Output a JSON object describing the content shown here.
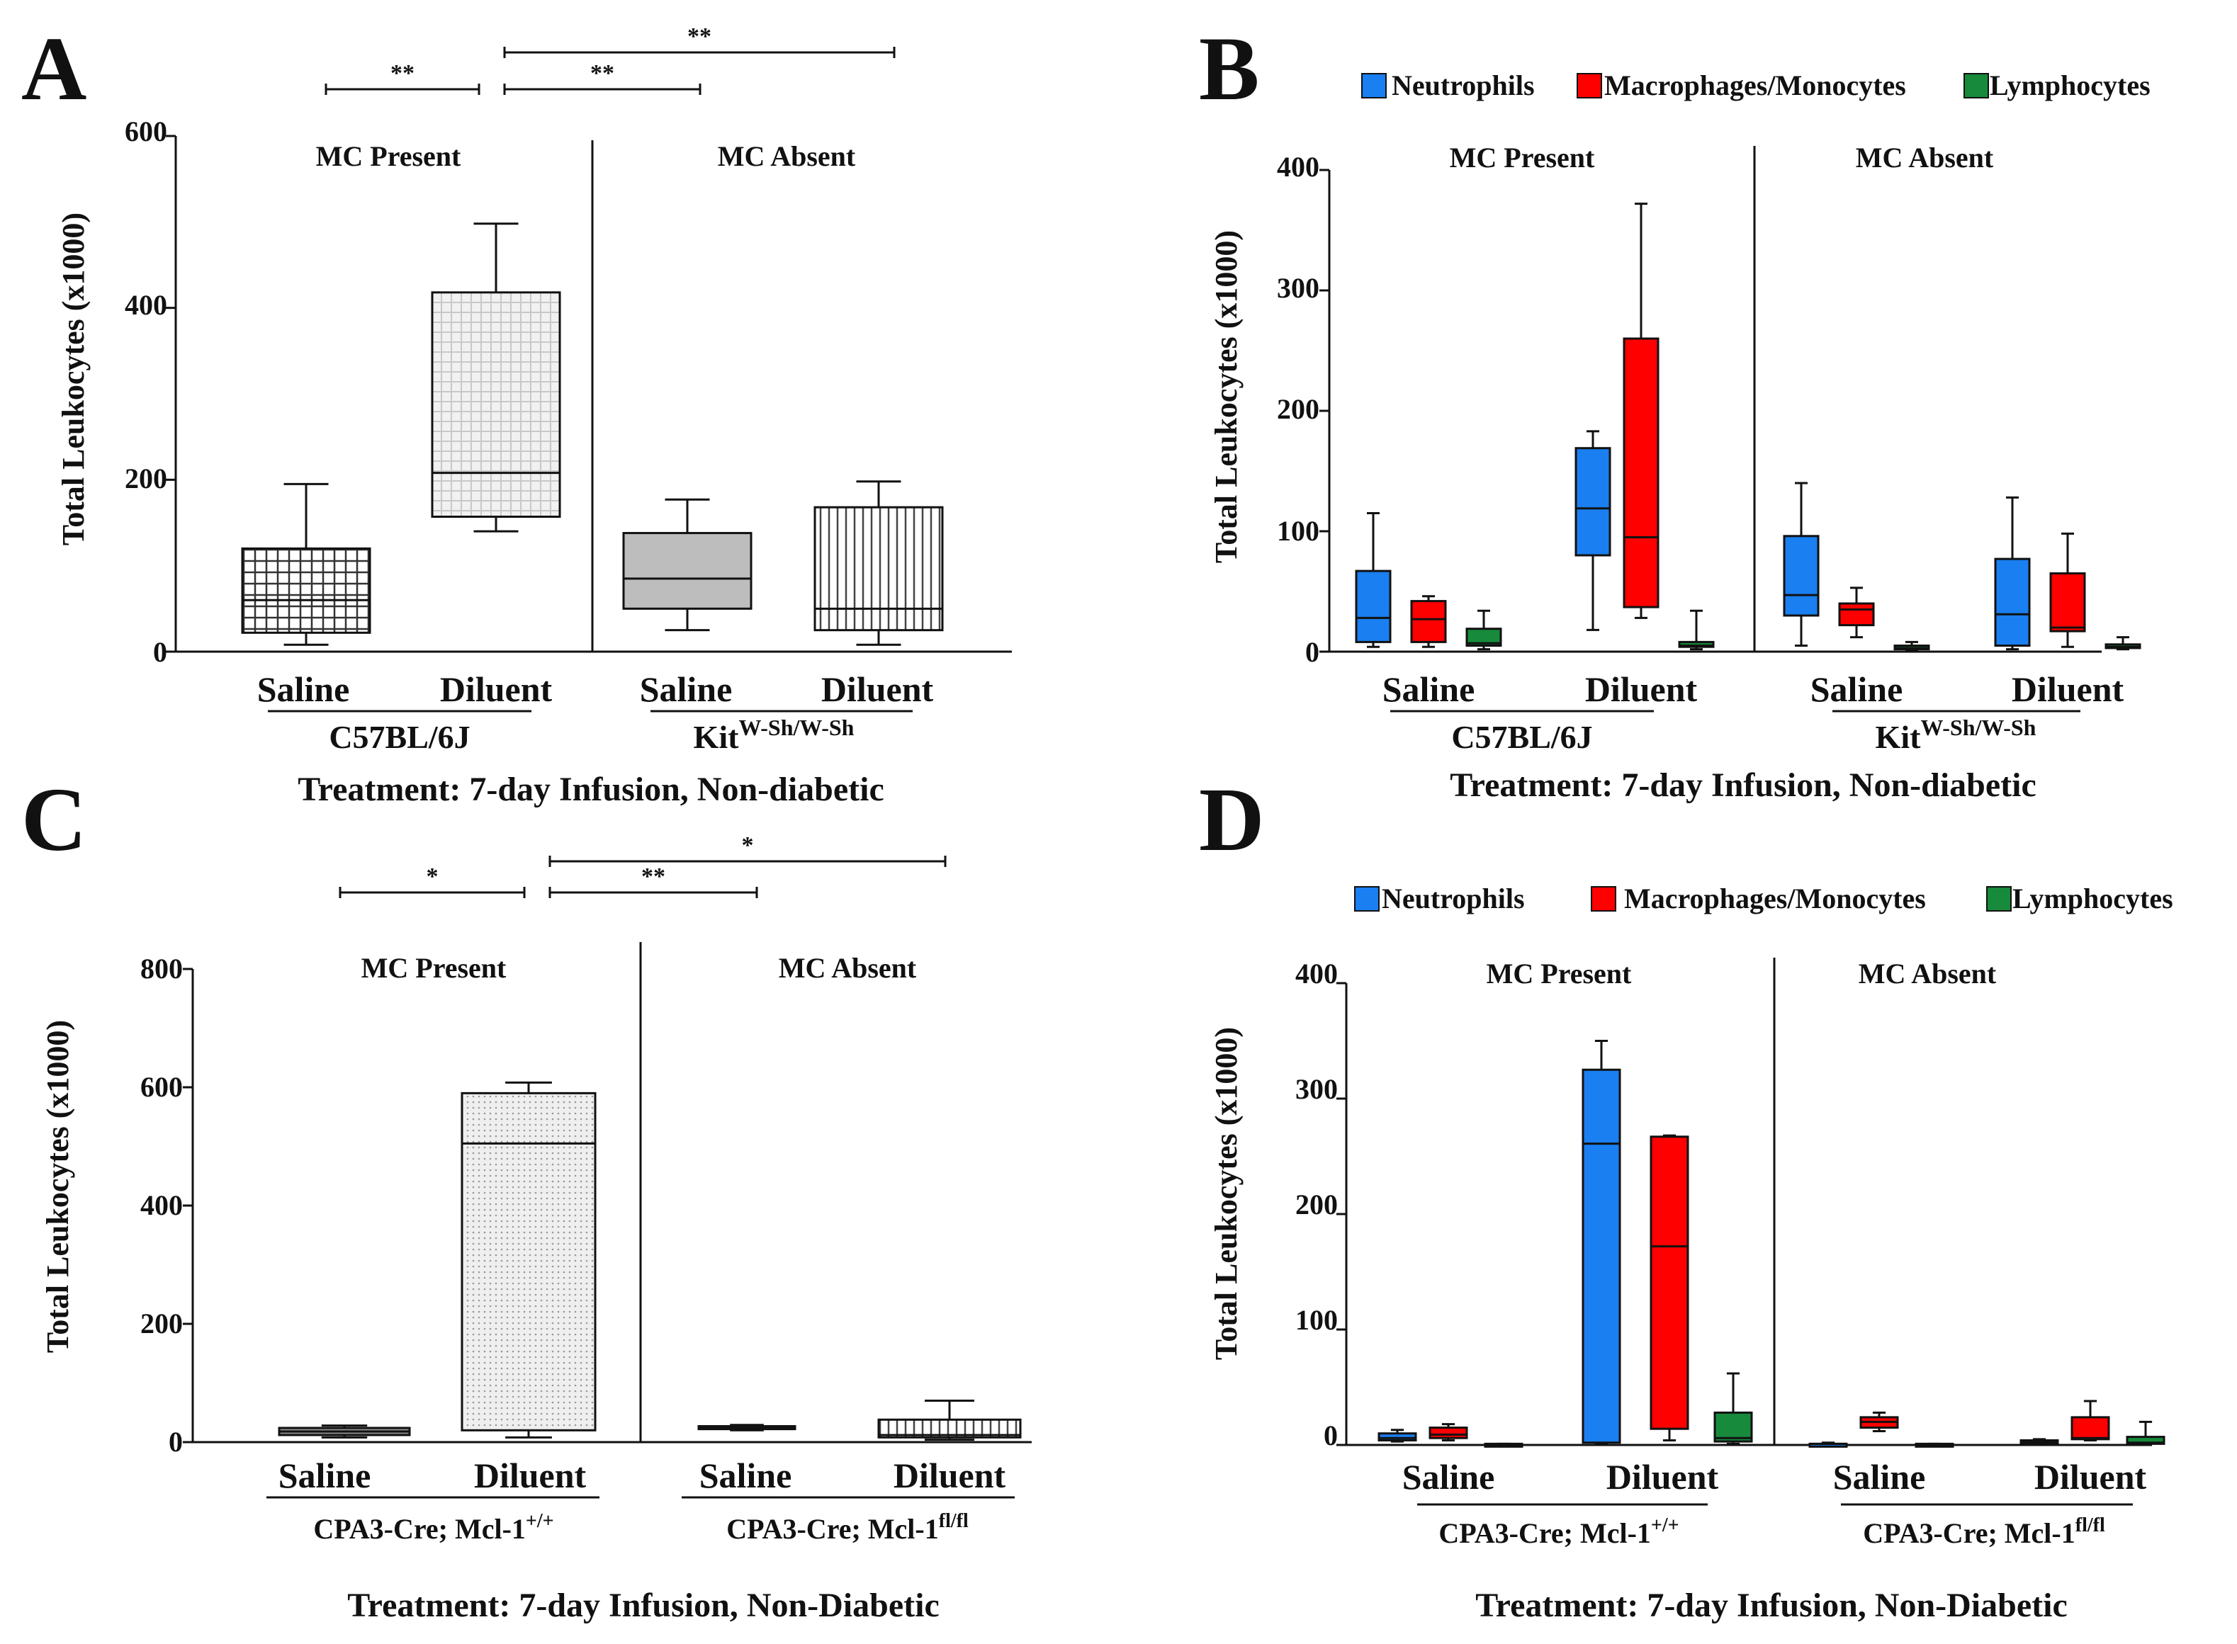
{
  "chart_data": [
    {
      "panel": "A",
      "type": "box",
      "ylabel": "Total Leukocytes (x1000)",
      "ylim": [
        0,
        600
      ],
      "yticks": [
        "0",
        "200",
        "400",
        "600"
      ],
      "group_labels": [
        "MC Present",
        "MC Absent"
      ],
      "categories": [
        "Saline",
        "Diluent",
        "Saline",
        "Diluent"
      ],
      "strains": [
        {
          "base": "C57BL/6J",
          "sup": ""
        },
        {
          "base": "Kit",
          "sup": "W-Sh/W-Sh"
        }
      ],
      "treatment": "Treatment: 7-day Infusion, Non-diabetic",
      "boxes": [
        {
          "name": "C57BL/6J Saline",
          "min": 8,
          "q1": 22,
          "median": 60,
          "q3": 120,
          "max": 195
        },
        {
          "name": "C57BL/6J Diluent",
          "min": 140,
          "q1": 157,
          "median": 208,
          "q3": 418,
          "max": 498
        },
        {
          "name": "Kit Saline",
          "min": 25,
          "q1": 50,
          "median": 85,
          "q3": 138,
          "max": 177
        },
        {
          "name": "Kit Diluent",
          "min": 8,
          "q1": 25,
          "median": 50,
          "q3": 168,
          "max": 198
        }
      ],
      "significance": [
        {
          "label": "**",
          "from": 0,
          "to": 1,
          "level": 0
        },
        {
          "label": "**",
          "from": 1,
          "to": 2,
          "level": 0
        },
        {
          "label": "**",
          "from": 1,
          "to": 3,
          "level": 1
        }
      ]
    },
    {
      "panel": "B",
      "type": "box",
      "ylabel": "Total Leukocytes (x1000)",
      "ylim": [
        0,
        400
      ],
      "yticks": [
        "0",
        "100",
        "200",
        "300",
        "400"
      ],
      "group_labels": [
        "MC Present",
        "MC Absent"
      ],
      "categories": [
        "Saline",
        "Diluent",
        "Saline",
        "Diluent"
      ],
      "strains": [
        {
          "base": "C57BL/6J",
          "sup": ""
        },
        {
          "base": "Kit",
          "sup": "W-Sh/W-Sh"
        }
      ],
      "treatment": "Treatment:  7-day Infusion, Non-diabetic",
      "legend": [
        "Neutrophils",
        "Macrophages/Monocytes",
        "Lymphocytes"
      ],
      "series_colors": [
        "#1a7ff0",
        "#ff0000",
        "#178a3c"
      ],
      "boxes": [
        {
          "series": 0,
          "cat": 0,
          "min": 4,
          "q1": 8,
          "median": 28,
          "q3": 67,
          "max": 115
        },
        {
          "series": 1,
          "cat": 0,
          "min": 4,
          "q1": 8,
          "median": 27,
          "q3": 42,
          "max": 46
        },
        {
          "series": 2,
          "cat": 0,
          "min": 2,
          "q1": 5,
          "median": 7,
          "q3": 19,
          "max": 34
        },
        {
          "series": 0,
          "cat": 1,
          "min": 18,
          "q1": 80,
          "median": 119,
          "q3": 169,
          "max": 183
        },
        {
          "series": 1,
          "cat": 1,
          "min": 28,
          "q1": 37,
          "median": 95,
          "q3": 260,
          "max": 372
        },
        {
          "series": 2,
          "cat": 1,
          "min": 2,
          "q1": 4,
          "median": 5,
          "q3": 8,
          "max": 34
        },
        {
          "series": 0,
          "cat": 2,
          "min": 5,
          "q1": 30,
          "median": 47,
          "q3": 96,
          "max": 140
        },
        {
          "series": 1,
          "cat": 2,
          "min": 12,
          "q1": 22,
          "median": 35,
          "q3": 40,
          "max": 53
        },
        {
          "series": 2,
          "cat": 2,
          "min": 1,
          "q1": 2,
          "median": 3,
          "q3": 5,
          "max": 8
        },
        {
          "series": 0,
          "cat": 3,
          "min": 2,
          "q1": 5,
          "median": 31,
          "q3": 77,
          "max": 128
        },
        {
          "series": 1,
          "cat": 3,
          "min": 4,
          "q1": 17,
          "median": 20,
          "q3": 65,
          "max": 98
        },
        {
          "series": 2,
          "cat": 3,
          "min": 2,
          "q1": 3,
          "median": 4,
          "q3": 6,
          "max": 12
        }
      ]
    },
    {
      "panel": "C",
      "type": "box",
      "ylabel": "Total Leukocytes (x1000)",
      "ylim": [
        0,
        800
      ],
      "yticks": [
        "0",
        "200",
        "400",
        "600",
        "800"
      ],
      "group_labels": [
        "MC Present",
        "MC Absent"
      ],
      "categories": [
        "Saline",
        "Diluent",
        "Saline",
        "Diluent"
      ],
      "strains": [
        {
          "base": "CPA3-Cre; Mcl-1",
          "sup": "+/+"
        },
        {
          "base": "CPA3-Cre; Mcl-1",
          "sup": "fl/fl"
        }
      ],
      "treatment": "Treatment: 7-day Infusion, Non-Diabetic",
      "boxes": [
        {
          "name": "Mcl-1+/+ Saline",
          "min": 8,
          "q1": 12,
          "median": 18,
          "q3": 24,
          "max": 28
        },
        {
          "name": "Mcl-1+/+ Diluent",
          "min": 8,
          "q1": 20,
          "median": 505,
          "q3": 590,
          "max": 608
        },
        {
          "name": "Mcl-1fl/fl Saline",
          "min": 20,
          "q1": 22,
          "median": 24,
          "q3": 27,
          "max": 29
        },
        {
          "name": "Mcl-1fl/fl Diluent",
          "min": 4,
          "q1": 8,
          "median": 12,
          "q3": 38,
          "max": 70
        }
      ],
      "significance": [
        {
          "label": "*",
          "from": 0,
          "to": 1,
          "level": 0
        },
        {
          "label": "**",
          "from": 1,
          "to": 2,
          "level": 0
        },
        {
          "label": "*",
          "from": 1,
          "to": 3,
          "level": 1
        }
      ]
    },
    {
      "panel": "D",
      "type": "box",
      "ylabel": "Total Leukocytes (x1000)",
      "ylim": [
        0,
        400
      ],
      "yticks": [
        "0",
        "100",
        "200",
        "300",
        "400"
      ],
      "group_labels": [
        "MC Present",
        "MC Absent"
      ],
      "categories": [
        "Saline",
        "Diluent",
        "Saline",
        "Diluent"
      ],
      "strains": [
        {
          "base": "CPA3-Cre; Mcl-1",
          "sup": "+/+"
        },
        {
          "base": "CPA3-Cre; Mcl-1",
          "sup": "fl/fl"
        }
      ],
      "treatment": "Treatment: 7-day Infusion, Non-Diabetic",
      "legend": [
        "Neutrophils",
        "Macrophages/Monocytes",
        "Lymphocytes"
      ],
      "series_colors": [
        "#1a7ff0",
        "#ff0000",
        "#178a3c"
      ],
      "boxes": [
        {
          "series": 0,
          "cat": 0,
          "min": 3,
          "q1": 4,
          "median": 6,
          "q3": 10,
          "max": 13
        },
        {
          "series": 1,
          "cat": 0,
          "min": 4,
          "q1": 6,
          "median": 9,
          "q3": 15,
          "max": 18
        },
        {
          "series": 2,
          "cat": 0,
          "min": 0,
          "q1": 0,
          "median": 0,
          "q3": 1,
          "max": 1
        },
        {
          "series": 0,
          "cat": 1,
          "min": 1,
          "q1": 2,
          "median": 261,
          "q3": 325,
          "max": 350
        },
        {
          "series": 1,
          "cat": 1,
          "min": 4,
          "q1": 14,
          "median": 172,
          "q3": 267,
          "max": 268
        },
        {
          "series": 2,
          "cat": 1,
          "min": 1,
          "q1": 3,
          "median": 6,
          "q3": 28,
          "max": 62
        },
        {
          "series": 0,
          "cat": 2,
          "min": 0,
          "q1": 0,
          "median": 1,
          "q3": 1,
          "max": 2
        },
        {
          "series": 1,
          "cat": 2,
          "min": 12,
          "q1": 15,
          "median": 20,
          "q3": 24,
          "max": 28
        },
        {
          "series": 2,
          "cat": 2,
          "min": 0,
          "q1": 0,
          "median": 0,
          "q3": 1,
          "max": 1
        },
        {
          "series": 0,
          "cat": 3,
          "min": 1,
          "q1": 2,
          "median": 3,
          "q3": 4,
          "max": 5
        },
        {
          "series": 1,
          "cat": 3,
          "min": 4,
          "q1": 5,
          "median": 6,
          "q3": 24,
          "max": 38
        },
        {
          "series": 2,
          "cat": 3,
          "min": 0,
          "q1": 1,
          "median": 2,
          "q3": 7,
          "max": 20
        }
      ]
    }
  ]
}
